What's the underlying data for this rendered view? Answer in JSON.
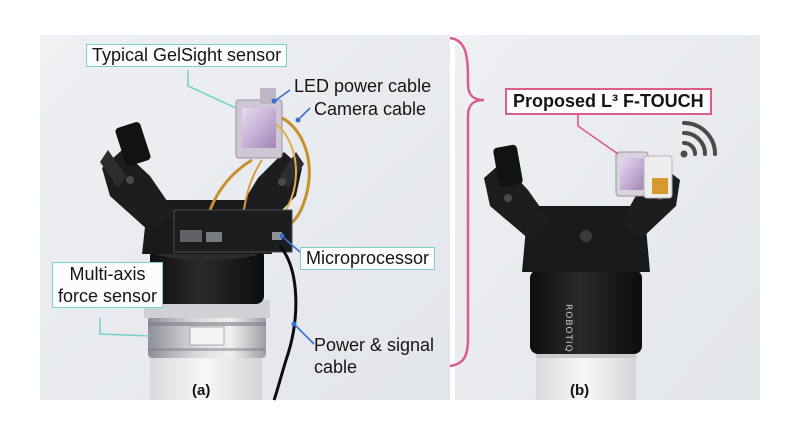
{
  "figure": {
    "panel_a": {
      "caption": "(a)",
      "labels": {
        "gelsight": "Typical GelSight sensor",
        "led_cable": "LED power cable",
        "camera_cable": "Camera cable",
        "microprocessor": "Microprocessor",
        "force_sensor_line1": "Multi-axis",
        "force_sensor_line2": "force sensor",
        "power_line1": "Power & signal",
        "power_line2": "cable"
      }
    },
    "panel_b": {
      "caption": "(b)",
      "title": "Proposed L³ F-TOUCH",
      "gripper_logo": "ROBOTIQ",
      "wireless_icon": "wifi-icon"
    },
    "colors": {
      "teal_box": "#7ccfca",
      "pink_bracket": "#d95c8d",
      "blue_arrow": "#3a6fd1",
      "gripper_body": "#1c1c1e"
    }
  }
}
